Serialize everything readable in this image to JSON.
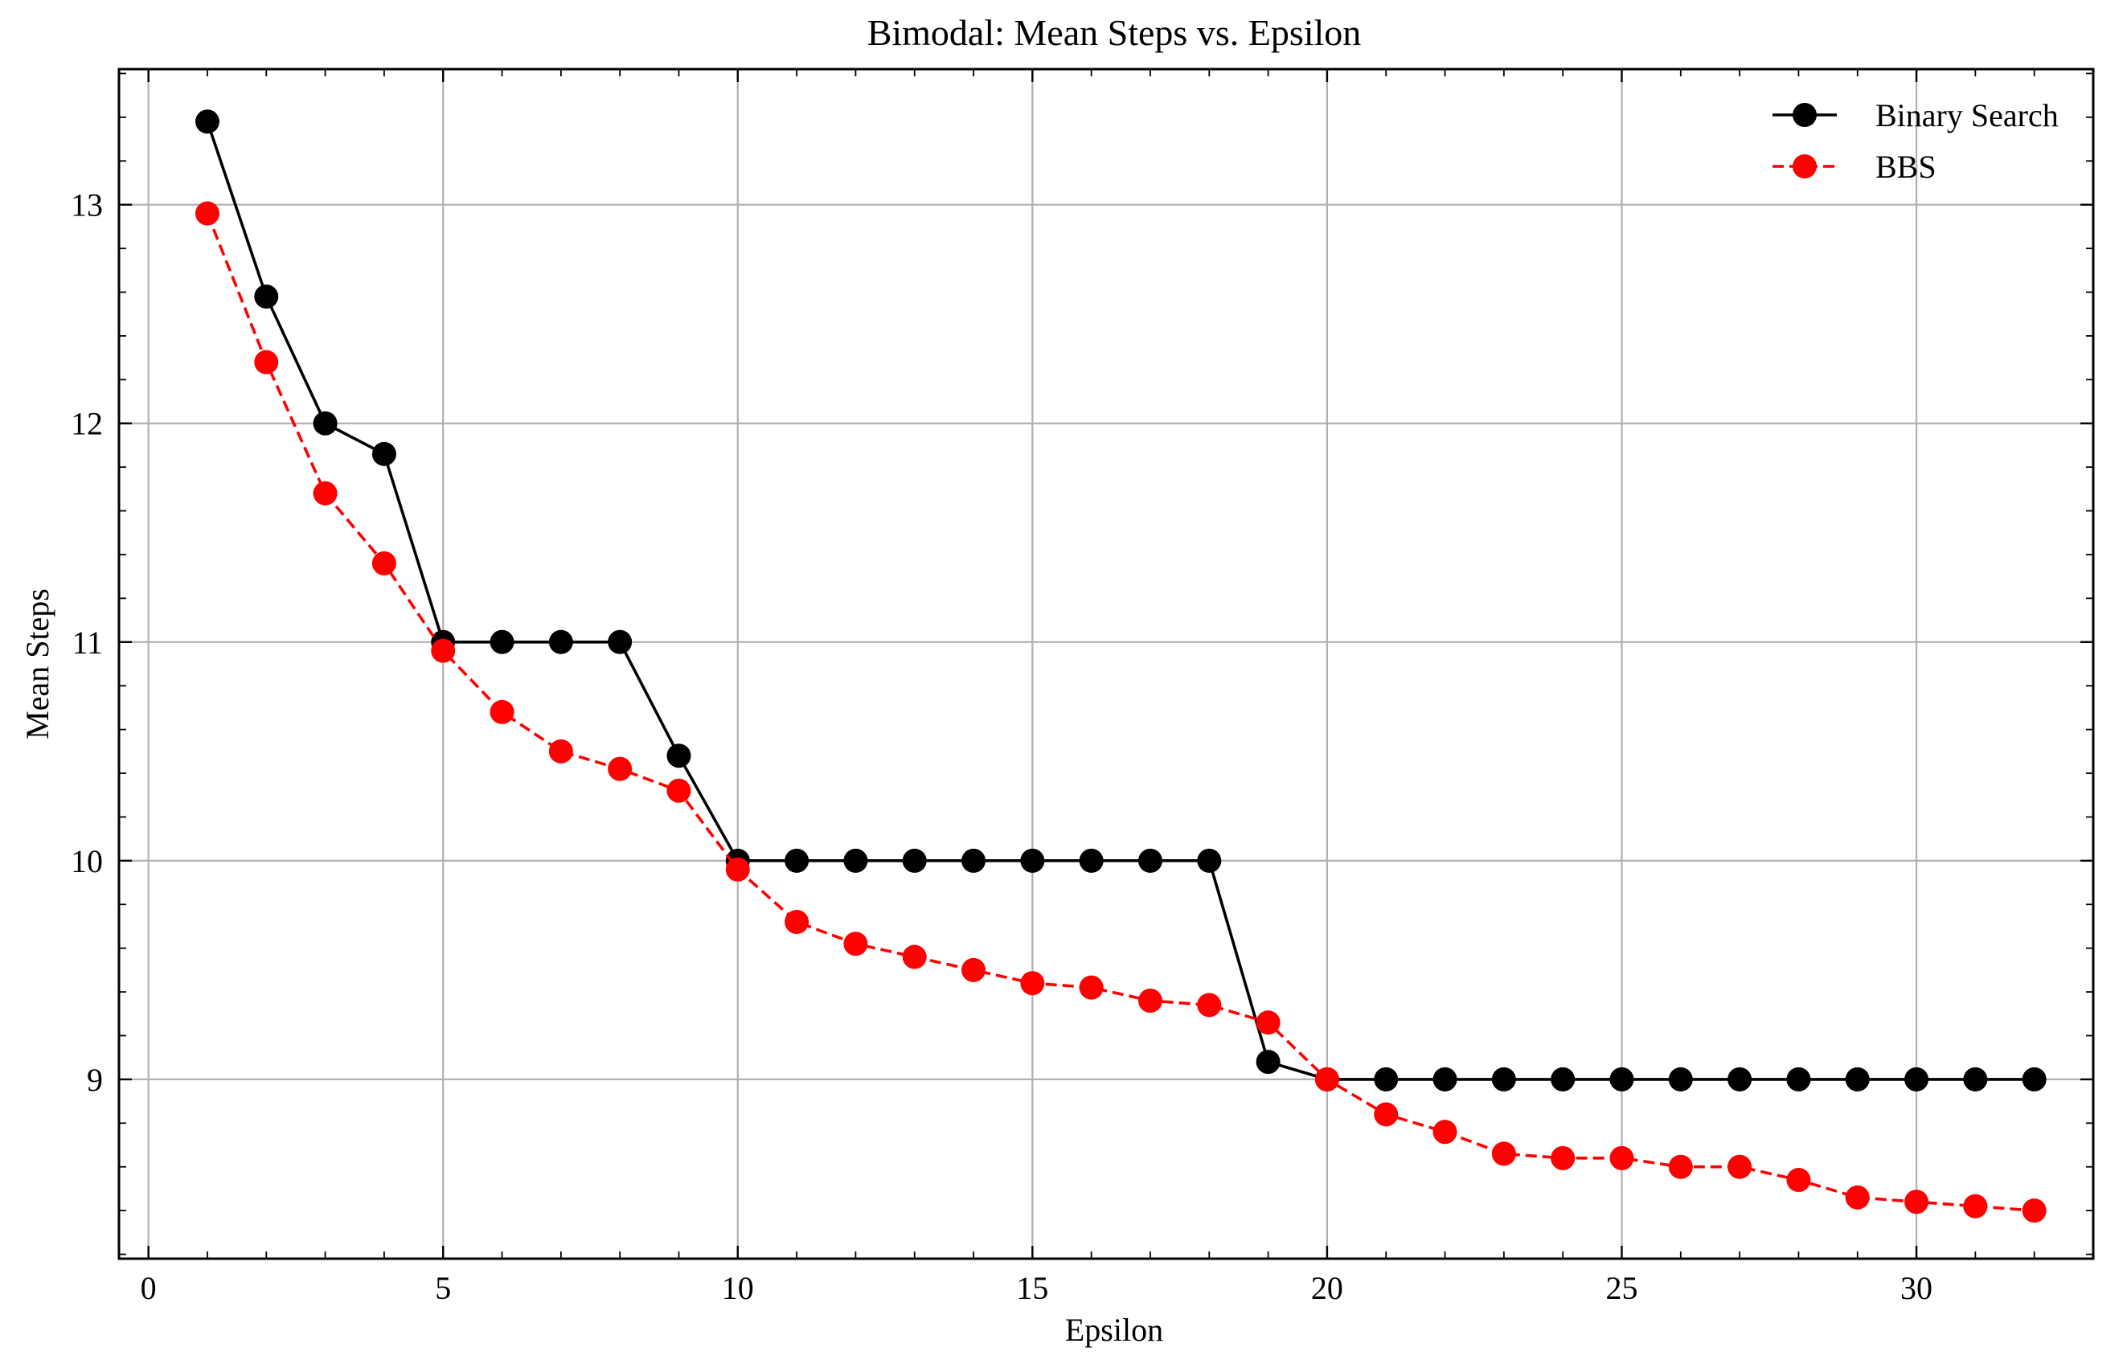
{
  "chart_data": {
    "type": "line",
    "title": "Bimodal: Mean Steps vs. Epsilon",
    "xlabel": "Epsilon",
    "ylabel": "Mean Steps",
    "xlim": [
      -0.5,
      33
    ],
    "ylim": [
      8.18,
      13.62
    ],
    "xticks": [
      0,
      5,
      10,
      15,
      20,
      25,
      30
    ],
    "yticks": [
      9,
      10,
      11,
      12,
      13
    ],
    "grid": true,
    "legend_position": "top-right",
    "x": [
      1,
      2,
      3,
      4,
      5,
      6,
      7,
      8,
      9,
      10,
      11,
      12,
      13,
      14,
      15,
      16,
      17,
      18,
      19,
      20,
      21,
      22,
      23,
      24,
      25,
      26,
      27,
      28,
      29,
      30,
      31,
      32
    ],
    "series": [
      {
        "name": "Binary Search",
        "color": "#000000",
        "linestyle": "solid",
        "marker": "circle",
        "values": [
          13.38,
          12.58,
          12.0,
          11.86,
          11.0,
          11.0,
          11.0,
          11.0,
          10.48,
          10.0,
          10.0,
          10.0,
          10.0,
          10.0,
          10.0,
          10.0,
          10.0,
          10.0,
          9.08,
          9.0,
          9.0,
          9.0,
          9.0,
          9.0,
          9.0,
          9.0,
          9.0,
          9.0,
          9.0,
          9.0,
          9.0,
          9.0
        ]
      },
      {
        "name": "BBS",
        "color": "#ff0000",
        "linestyle": "dashed",
        "marker": "circle",
        "values": [
          12.96,
          12.28,
          11.68,
          11.36,
          10.96,
          10.68,
          10.5,
          10.42,
          10.32,
          9.96,
          9.72,
          9.62,
          9.56,
          9.5,
          9.44,
          9.42,
          9.36,
          9.34,
          9.26,
          9.0,
          8.84,
          8.76,
          8.66,
          8.64,
          8.64,
          8.6,
          8.6,
          8.54,
          8.46,
          8.44,
          8.42,
          8.4
        ]
      }
    ]
  }
}
